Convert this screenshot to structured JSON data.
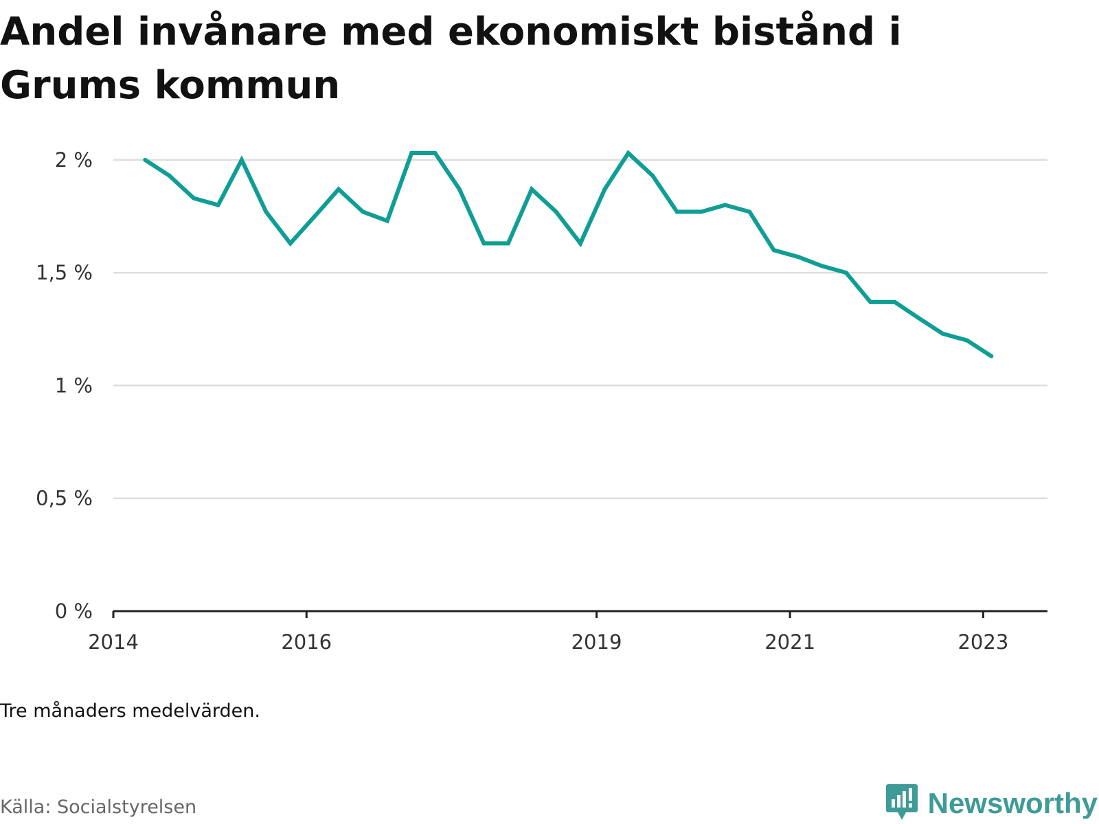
{
  "title": "Andel invånare med ekonomiskt bistånd i Grums kommun",
  "note": "Tre månaders medelvärden.",
  "source": "Källa: Socialstyrelsen",
  "brand": {
    "name": "Newsworthy",
    "icon": "newsworthy-logo-icon",
    "color": "#3f9b97"
  },
  "colors": {
    "line": "#0f9e95",
    "grid": "#dddddd",
    "axis": "#222222"
  },
  "chart_data": {
    "type": "line",
    "title": "Andel invånare med ekonomiskt bistånd i Grums kommun",
    "xlabel": "",
    "ylabel": "",
    "xlim": [
      "2014-01-01",
      "2023-09-01"
    ],
    "ylim": [
      0,
      2.1
    ],
    "yticks": [
      0,
      0.5,
      1,
      1.5,
      2
    ],
    "ytick_labels": [
      "0 %",
      "0,5 %",
      "1 %",
      "1,5 %",
      "2 %"
    ],
    "xticks": [
      "2014-01-01",
      "2016-01-01",
      "2019-01-01",
      "2021-01-01",
      "2023-01-01"
    ],
    "xtick_labels": [
      "2014",
      "2016",
      "2019",
      "2021",
      "2023"
    ],
    "grid": true,
    "legend": "none",
    "series": [
      {
        "color": "#0f9e95",
        "points": [
          [
            "2014-05-01",
            2.0
          ],
          [
            "2014-08-01",
            1.93
          ],
          [
            "2014-11-01",
            1.83
          ],
          [
            "2015-02-01",
            1.8
          ],
          [
            "2015-05-01",
            2.0
          ],
          [
            "2015-08-01",
            1.77
          ],
          [
            "2015-11-01",
            1.63
          ],
          [
            "2016-02-01",
            1.75
          ],
          [
            "2016-05-01",
            1.87
          ],
          [
            "2016-08-01",
            1.77
          ],
          [
            "2016-11-01",
            1.73
          ],
          [
            "2017-02-01",
            2.03
          ],
          [
            "2017-05-01",
            2.03
          ],
          [
            "2017-08-01",
            1.87
          ],
          [
            "2017-11-01",
            1.63
          ],
          [
            "2018-02-01",
            1.63
          ],
          [
            "2018-05-01",
            1.87
          ],
          [
            "2018-08-01",
            1.77
          ],
          [
            "2018-11-01",
            1.63
          ],
          [
            "2019-02-01",
            1.87
          ],
          [
            "2019-05-01",
            2.03
          ],
          [
            "2019-08-01",
            1.93
          ],
          [
            "2019-11-01",
            1.77
          ],
          [
            "2020-02-01",
            1.77
          ],
          [
            "2020-05-01",
            1.8
          ],
          [
            "2020-08-01",
            1.77
          ],
          [
            "2020-11-01",
            1.6
          ],
          [
            "2021-02-01",
            1.57
          ],
          [
            "2021-05-01",
            1.53
          ],
          [
            "2021-08-01",
            1.5
          ],
          [
            "2021-11-01",
            1.37
          ],
          [
            "2022-02-01",
            1.37
          ],
          [
            "2022-05-01",
            1.3
          ],
          [
            "2022-08-01",
            1.23
          ],
          [
            "2022-11-01",
            1.2
          ],
          [
            "2023-02-01",
            1.13
          ]
        ]
      }
    ]
  }
}
